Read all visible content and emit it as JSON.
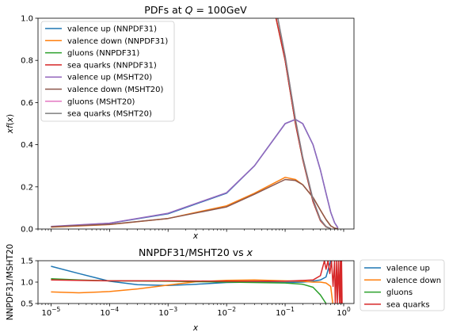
{
  "chart_data": [
    {
      "type": "line",
      "title": "PDFs at Q = 100GeV",
      "title_parts": [
        "PDFs at ",
        "Q",
        " = 100GeV"
      ],
      "xlabel": "x",
      "ylabel": "xf(x)",
      "xscale": "log",
      "xlim": [
        6e-06,
        1.5
      ],
      "ylim": [
        0,
        1.0
      ],
      "yticks": [
        "0.0",
        "0.2",
        "0.4",
        "0.6",
        "0.8",
        "1.0"
      ],
      "grid": false,
      "legend_position": "upper-left",
      "series": [
        {
          "name": "valence up (NNPDF31)",
          "color": "#1f77b4",
          "x": [
            1e-05,
            0.0001,
            0.001,
            0.01,
            0.03,
            0.1,
            0.15,
            0.2,
            0.3,
            0.4,
            0.5,
            0.6,
            0.7,
            0.8
          ],
          "y": [
            0.011,
            0.027,
            0.072,
            0.17,
            0.3,
            0.5,
            0.52,
            0.5,
            0.4,
            0.28,
            0.17,
            0.08,
            0.03,
            0.005
          ]
        },
        {
          "name": "valence down (NNPDF31)",
          "color": "#ff7f0e",
          "x": [
            1e-05,
            0.0001,
            0.001,
            0.01,
            0.03,
            0.1,
            0.15,
            0.2,
            0.3,
            0.4,
            0.5,
            0.6,
            0.7,
            0.8
          ],
          "y": [
            0.009,
            0.021,
            0.05,
            0.11,
            0.17,
            0.245,
            0.235,
            0.21,
            0.15,
            0.09,
            0.045,
            0.015,
            0.004,
            0.001
          ]
        },
        {
          "name": "gluons (NNPDF31)",
          "color": "#2ca02c",
          "x": [
            0.07,
            0.1,
            0.15,
            0.2,
            0.3,
            0.4,
            0.5,
            0.6
          ],
          "y": [
            1.0,
            0.8,
            0.5,
            0.33,
            0.13,
            0.04,
            0.01,
            0.002
          ]
        },
        {
          "name": "sea quarks (NNPDF31)",
          "color": "#d62728",
          "x": [
            0.07,
            0.1,
            0.15,
            0.2,
            0.3,
            0.4,
            0.5,
            0.6
          ],
          "y": [
            1.0,
            0.8,
            0.5,
            0.33,
            0.13,
            0.04,
            0.01,
            0.002
          ]
        },
        {
          "name": "valence up (MSHT20)",
          "color": "#9467bd",
          "x": [
            1e-05,
            0.0001,
            0.001,
            0.01,
            0.03,
            0.1,
            0.15,
            0.2,
            0.3,
            0.4,
            0.5,
            0.6,
            0.7,
            0.8
          ],
          "y": [
            0.012,
            0.028,
            0.075,
            0.172,
            0.3,
            0.5,
            0.52,
            0.5,
            0.4,
            0.28,
            0.17,
            0.08,
            0.03,
            0.005
          ]
        },
        {
          "name": "valence down (MSHT20)",
          "color": "#8c564b",
          "x": [
            1e-05,
            0.0001,
            0.001,
            0.01,
            0.03,
            0.1,
            0.15,
            0.2,
            0.3,
            0.4,
            0.5,
            0.6,
            0.7,
            0.8
          ],
          "y": [
            0.01,
            0.022,
            0.05,
            0.105,
            0.165,
            0.235,
            0.23,
            0.21,
            0.15,
            0.09,
            0.045,
            0.015,
            0.004,
            0.001
          ]
        },
        {
          "name": "gluons (MSHT20)",
          "color": "#e377c2",
          "x": [
            0.075,
            0.1,
            0.15,
            0.2,
            0.3,
            0.4,
            0.5,
            0.6
          ],
          "y": [
            1.0,
            0.82,
            0.52,
            0.34,
            0.14,
            0.045,
            0.012,
            0.002
          ]
        },
        {
          "name": "sea quarks (MSHT20)",
          "color": "#7f7f7f",
          "x": [
            0.075,
            0.1,
            0.15,
            0.2,
            0.3,
            0.4,
            0.5,
            0.6
          ],
          "y": [
            1.0,
            0.82,
            0.52,
            0.34,
            0.14,
            0.045,
            0.012,
            0.002
          ]
        }
      ]
    },
    {
      "type": "line",
      "title": "NNPDF31/MSHT20 vs x",
      "title_parts": [
        "NNPDF31/MSHT20 vs ",
        "x"
      ],
      "xlabel": "x",
      "ylabel": "NNPDF31/MSHT20",
      "xscale": "log",
      "xlim": [
        6e-06,
        1.5
      ],
      "ylim": [
        0.5,
        1.5
      ],
      "yticks": [
        "0.5",
        "1.0",
        "1.5"
      ],
      "xticks": [
        {
          "value": 1e-05,
          "base": "10",
          "exp": "−5"
        },
        {
          "value": 0.0001,
          "base": "10",
          "exp": "−4"
        },
        {
          "value": 0.001,
          "base": "10",
          "exp": "−3"
        },
        {
          "value": 0.01,
          "base": "10",
          "exp": "−2"
        },
        {
          "value": 0.1,
          "base": "10",
          "exp": "−1"
        },
        {
          "value": 1,
          "base": "10",
          "exp": "0"
        }
      ],
      "grid": false,
      "legend_position": "outside-right",
      "series": [
        {
          "name": "valence up",
          "color": "#1f77b4",
          "x": [
            1e-05,
            3e-05,
            0.0001,
            0.0003,
            0.001,
            0.003,
            0.01,
            0.03,
            0.1,
            0.2,
            0.3,
            0.4,
            0.5,
            0.6
          ],
          "y": [
            1.37,
            1.2,
            1.02,
            0.94,
            0.92,
            0.95,
            0.99,
            1.0,
            0.99,
            1.0,
            1.02,
            1.05,
            1.12,
            1.5
          ]
        },
        {
          "name": "valence down",
          "color": "#ff7f0e",
          "x": [
            1e-05,
            3e-05,
            0.0001,
            0.0003,
            0.001,
            0.003,
            0.01,
            0.03,
            0.1,
            0.2,
            0.3,
            0.4,
            0.5,
            0.6,
            0.65
          ],
          "y": [
            0.77,
            0.75,
            0.78,
            0.84,
            0.93,
            1.01,
            1.04,
            1.05,
            1.03,
            1.02,
            1.0,
            1.0,
            0.98,
            0.9,
            0.5
          ]
        },
        {
          "name": "gluons",
          "color": "#2ca02c",
          "x": [
            1e-05,
            3e-05,
            0.0001,
            0.001,
            0.01,
            0.1,
            0.2,
            0.3,
            0.4,
            0.5
          ],
          "y": [
            1.08,
            1.05,
            1.03,
            1.02,
            1.0,
            0.98,
            0.95,
            0.88,
            0.7,
            0.5
          ]
        },
        {
          "name": "sea quarks",
          "color": "#d62728",
          "x": [
            1e-05,
            0.0001,
            0.001,
            0.01,
            0.1,
            0.3,
            0.4,
            0.47,
            0.5,
            0.54,
            0.58,
            0.62,
            0.66,
            0.7,
            0.72,
            0.76,
            0.78,
            0.82,
            0.85,
            0.88,
            0.9,
            0.92,
            0.94
          ],
          "y": [
            1.05,
            1.03,
            1.03,
            1.02,
            1.02,
            1.05,
            1.15,
            1.5,
            1.3,
            1.5,
            1.2,
            1.5,
            0.9,
            1.5,
            0.5,
            1.5,
            0.5,
            1.5,
            0.5,
            1.5,
            0.5,
            1.5,
            0.5
          ]
        }
      ]
    }
  ]
}
